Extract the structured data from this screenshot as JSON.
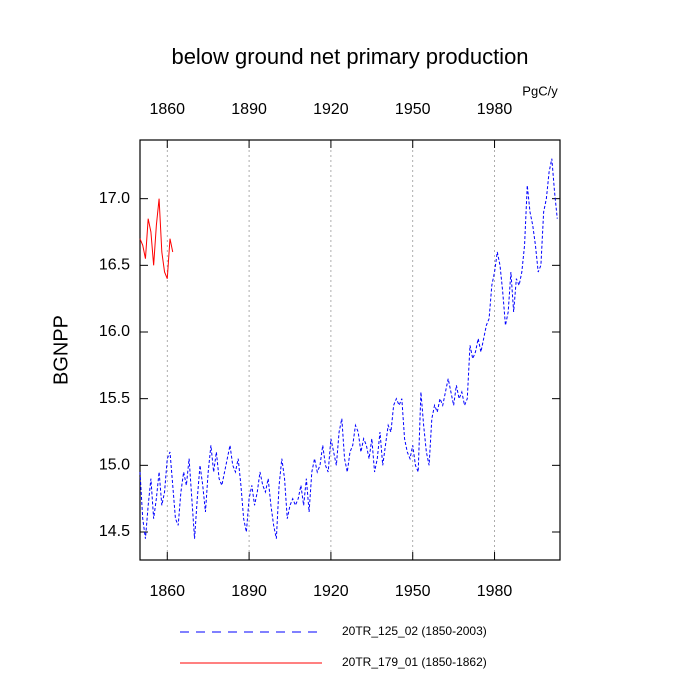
{
  "chart_data": {
    "type": "line",
    "title": "below ground net primary production",
    "units": "PgC/y",
    "y_label": "BGNPP",
    "xlim": [
      1850,
      2004
    ],
    "xticks": [
      1860,
      1890,
      1920,
      1950,
      1980
    ],
    "ylim": [
      14.29,
      17.44
    ],
    "yticks": [
      14.5,
      {
        "value": 15,
        "label": "15.0"
      },
      15.5,
      {
        "value": 16,
        "label": "16.0"
      },
      16.5,
      {
        "value": 17,
        "label": "17.0"
      }
    ],
    "grid": true,
    "series": [
      {
        "name": "20TR_125_02 (1850-2003)",
        "color": "#0000ff",
        "line_style": "dashed",
        "x": [
          1850,
          1851,
          1852,
          1853,
          1854,
          1855,
          1856,
          1857,
          1858,
          1859,
          1860,
          1861,
          1862,
          1863,
          1864,
          1865,
          1866,
          1867,
          1868,
          1869,
          1870,
          1871,
          1872,
          1873,
          1874,
          1875,
          1876,
          1877,
          1878,
          1879,
          1880,
          1881,
          1882,
          1883,
          1884,
          1885,
          1886,
          1887,
          1888,
          1889,
          1890,
          1891,
          1892,
          1893,
          1894,
          1895,
          1896,
          1897,
          1898,
          1899,
          1900,
          1901,
          1902,
          1903,
          1904,
          1905,
          1906,
          1907,
          1908,
          1909,
          1910,
          1911,
          1912,
          1913,
          1914,
          1915,
          1916,
          1917,
          1918,
          1919,
          1920,
          1921,
          1922,
          1923,
          1924,
          1925,
          1926,
          1927,
          1928,
          1929,
          1930,
          1931,
          1932,
          1933,
          1934,
          1935,
          1936,
          1937,
          1938,
          1939,
          1940,
          1941,
          1942,
          1943,
          1944,
          1945,
          1946,
          1947,
          1948,
          1949,
          1950,
          1951,
          1952,
          1953,
          1954,
          1955,
          1956,
          1957,
          1958,
          1959,
          1960,
          1961,
          1962,
          1963,
          1964,
          1965,
          1966,
          1967,
          1968,
          1969,
          1970,
          1971,
          1972,
          1973,
          1974,
          1975,
          1976,
          1977,
          1978,
          1979,
          1980,
          1981,
          1982,
          1983,
          1984,
          1985,
          1986,
          1987,
          1988,
          1989,
          1990,
          1991,
          1992,
          1993,
          1994,
          1995,
          1996,
          1997,
          1998,
          1999,
          2000,
          2001,
          2002,
          2003
        ],
        "values": [
          14.95,
          14.6,
          14.45,
          14.7,
          14.9,
          14.6,
          14.75,
          14.95,
          14.7,
          14.8,
          15.05,
          15.1,
          14.85,
          14.6,
          14.55,
          14.8,
          14.95,
          14.85,
          15.05,
          14.75,
          14.45,
          14.75,
          15.0,
          14.85,
          14.65,
          14.95,
          15.15,
          14.95,
          15.1,
          14.9,
          14.85,
          14.95,
          15.05,
          15.15,
          15.0,
          14.95,
          15.05,
          14.85,
          14.6,
          14.5,
          14.75,
          14.85,
          14.7,
          14.8,
          14.95,
          14.85,
          14.8,
          14.9,
          14.7,
          14.55,
          14.45,
          14.85,
          15.05,
          14.9,
          14.6,
          14.7,
          14.75,
          14.7,
          14.75,
          14.85,
          14.7,
          14.9,
          14.65,
          14.95,
          15.05,
          14.95,
          15.0,
          15.15,
          15.0,
          14.95,
          15.2,
          15.1,
          15.0,
          15.25,
          15.35,
          15.05,
          14.95,
          15.1,
          15.15,
          15.3,
          15.25,
          15.1,
          15.2,
          15.15,
          15.05,
          15.2,
          14.95,
          15.05,
          15.25,
          15.0,
          15.15,
          15.3,
          15.25,
          15.45,
          15.5,
          15.45,
          15.5,
          15.2,
          15.1,
          15.05,
          15.15,
          15.0,
          14.95,
          15.55,
          15.3,
          15.1,
          15.0,
          15.35,
          15.45,
          15.4,
          15.5,
          15.45,
          15.55,
          15.65,
          15.55,
          15.45,
          15.6,
          15.5,
          15.55,
          15.45,
          15.5,
          15.9,
          15.8,
          15.85,
          15.95,
          15.85,
          15.95,
          16.05,
          16.1,
          16.35,
          16.45,
          16.6,
          16.5,
          16.3,
          16.05,
          16.15,
          16.45,
          16.15,
          16.4,
          16.35,
          16.45,
          16.65,
          17.1,
          16.9,
          16.8,
          16.65,
          16.45,
          16.5,
          16.9,
          17.0,
          17.2,
          17.3,
          17.05,
          16.85
        ]
      },
      {
        "name": "20TR_179_01 (1850-1862)",
        "color": "#ff0000",
        "line_style": "solid",
        "x": [
          1850,
          1851,
          1852,
          1853,
          1854,
          1855,
          1856,
          1857,
          1858,
          1859,
          1860,
          1861,
          1862
        ],
        "values": [
          16.7,
          16.65,
          16.55,
          16.85,
          16.75,
          16.5,
          16.8,
          17.0,
          16.6,
          16.45,
          16.4,
          16.7,
          16.6
        ]
      }
    ]
  }
}
